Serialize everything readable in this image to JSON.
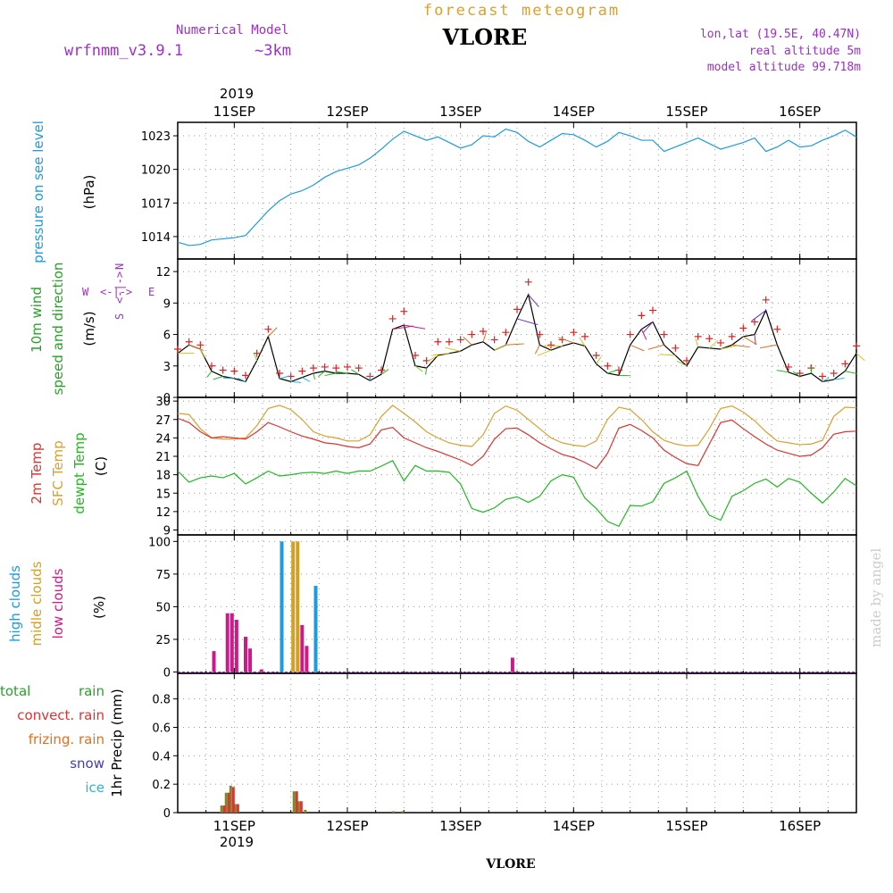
{
  "header": {
    "model_caption": "Numerical Model",
    "model_name": "wrfnmm_v3.9.1",
    "model_resolution": "~3km",
    "title": "forecast meteogram",
    "station": "VLORE",
    "lonlat": "lon,lat (19.5E, 40.47N)",
    "real_altitude": "real altitude 5m",
    "model_altitude": "model altitude  99.718m",
    "credit": "made by angel",
    "footer_station": "VLORE",
    "year": "2019"
  },
  "colors": {
    "pressure": "#1e9bdc",
    "wind_speed": "#000000",
    "wind_gust_marker": "#dd2222",
    "temp_2m": "#dd3333",
    "temp_sfc": "#daa030",
    "dewpoint": "#20b820",
    "high_clouds": "#1e9bdc",
    "mid_clouds": "#d4a020",
    "low_clouds": "#cc1a88",
    "total_rain": "#2aa02a",
    "convective_rain": "#dd3333",
    "freezing_rain": "#e07020",
    "snow": "#4040b0",
    "ice": "#20b8d8",
    "model_label": "#9b30c8",
    "title_color": "#daa030",
    "credit_color": "#cccccc"
  },
  "chart_data": [
    {
      "type": "line",
      "panel": "pressure",
      "ylabel": [
        "pressure on see level",
        "(hPa)"
      ],
      "yticks": [
        1014,
        1017,
        1020,
        1023
      ],
      "ylim": [
        1012,
        1024.2
      ],
      "x_days": [
        "11SEP",
        "12SEP",
        "13SEP",
        "14SEP",
        "15SEP",
        "16SEP"
      ],
      "xlim_days_from_11sep": [
        -0.5,
        5.5
      ],
      "grid": true,
      "series": [
        {
          "x": [
            -0.5,
            -0.4,
            -0.3,
            -0.2,
            -0.1,
            0,
            0.1,
            0.2,
            0.3,
            0.4,
            0.5,
            0.6,
            0.7,
            0.8,
            0.9,
            1,
            1.1,
            1.2,
            1.3,
            1.4,
            1.5,
            1.6,
            1.7,
            1.8,
            1.9,
            2,
            2.1,
            2.2,
            2.3,
            2.4,
            2.5,
            2.6,
            2.7,
            2.8,
            2.9,
            3,
            3.1,
            3.2,
            3.3,
            3.4,
            3.5,
            3.6,
            3.7,
            3.8,
            3.9,
            4,
            4.1,
            4.2,
            4.3,
            4.4,
            4.5,
            4.6,
            4.7,
            4.8,
            4.9,
            5,
            5.1,
            5.2,
            5.3,
            5.4,
            5.5
          ],
          "values": [
            1013.5,
            1013.2,
            1013.3,
            1013.7,
            1013.8,
            1013.9,
            1014.1,
            1015.2,
            1016.3,
            1017.2,
            1017.8,
            1018.1,
            1018.6,
            1019.3,
            1019.8,
            1020.1,
            1020.4,
            1021.0,
            1021.8,
            1022.7,
            1023.4,
            1023.0,
            1022.6,
            1022.9,
            1022.4,
            1021.9,
            1022.2,
            1023.0,
            1022.9,
            1023.6,
            1023.3,
            1022.5,
            1022.0,
            1022.6,
            1023.2,
            1023.1,
            1022.6,
            1022.0,
            1022.5,
            1023.3,
            1023.0,
            1022.6,
            1022.6,
            1021.6,
            1022.0,
            1022.4,
            1022.8,
            1022.3,
            1021.8,
            1022.1,
            1022.4,
            1022.8,
            1021.6,
            1022.0,
            1022.6,
            1022.0,
            1022.1,
            1022.6,
            1023.0,
            1023.5,
            1022.9
          ]
        }
      ]
    },
    {
      "type": "line",
      "panel": "wind",
      "ylabel": [
        "10m wind",
        "speed and direction",
        "(m/s)"
      ],
      "compass": {
        "w": "W",
        "e": "E",
        "s": "S",
        "n": "N"
      },
      "yticks": [
        0,
        3,
        6,
        9,
        12
      ],
      "ylim": [
        0,
        13.2
      ],
      "grid": true,
      "series": [
        {
          "name": "speed",
          "x": [
            -0.5,
            -0.4,
            -0.3,
            -0.2,
            -0.1,
            0,
            0.1,
            0.2,
            0.3,
            0.4,
            0.5,
            0.6,
            0.7,
            0.8,
            0.9,
            1,
            1.1,
            1.2,
            1.3,
            1.4,
            1.5,
            1.6,
            1.7,
            1.8,
            1.9,
            2,
            2.1,
            2.2,
            2.3,
            2.4,
            2.5,
            2.6,
            2.7,
            2.8,
            2.9,
            3,
            3.1,
            3.2,
            3.3,
            3.4,
            3.5,
            3.6,
            3.7,
            3.8,
            3.9,
            4,
            4.1,
            4.2,
            4.3,
            4.4,
            4.5,
            4.6,
            4.7,
            4.8,
            4.9,
            5,
            5.1,
            5.2,
            5.3,
            5.4,
            5.5
          ],
          "values": [
            4.2,
            5.0,
            4.6,
            2.5,
            2.0,
            1.8,
            1.5,
            3.5,
            5.8,
            1.8,
            1.5,
            1.9,
            2.3,
            2.5,
            2.3,
            2.3,
            2.2,
            1.6,
            2.2,
            6.5,
            6.9,
            3.0,
            2.8,
            4.0,
            4.2,
            4.4,
            5.0,
            5.3,
            4.5,
            5.0,
            7.5,
            9.8,
            5.0,
            4.5,
            4.9,
            5.2,
            4.9,
            3.2,
            2.3,
            2.1,
            5.0,
            6.5,
            7.2,
            5.0,
            4.0,
            3.0,
            4.8,
            4.7,
            4.6,
            5.0,
            5.8,
            6.0,
            8.3,
            5.0,
            2.4,
            2.0,
            2.3,
            1.5,
            1.7,
            2.5,
            4.2
          ]
        },
        {
          "name": "gust",
          "x": [
            -0.5,
            -0.4,
            -0.3,
            -0.2,
            -0.1,
            0,
            0.1,
            0.2,
            0.3,
            0.4,
            0.5,
            0.6,
            0.7,
            0.8,
            0.9,
            1,
            1.1,
            1.2,
            1.3,
            1.4,
            1.5,
            1.6,
            1.7,
            1.8,
            1.9,
            2,
            2.1,
            2.2,
            2.3,
            2.4,
            2.5,
            2.6,
            2.7,
            2.8,
            2.9,
            3,
            3.1,
            3.2,
            3.3,
            3.4,
            3.5,
            3.6,
            3.7,
            3.8,
            3.9,
            4,
            4.1,
            4.2,
            4.3,
            4.4,
            4.5,
            4.6,
            4.7,
            4.8,
            4.9,
            5,
            5.1,
            5.2,
            5.3,
            5.4,
            5.5
          ],
          "values": [
            4.6,
            5.3,
            5.0,
            3.0,
            2.6,
            2.5,
            2.1,
            4.2,
            6.5,
            2.3,
            2.0,
            2.5,
            2.8,
            2.9,
            2.8,
            2.9,
            2.8,
            2.0,
            2.6,
            7.5,
            8.2,
            4.0,
            3.5,
            5.3,
            5.3,
            5.5,
            6.0,
            6.3,
            5.5,
            6.2,
            8.4,
            11.0,
            6.0,
            5.0,
            5.5,
            6.2,
            5.8,
            4.0,
            3.0,
            2.6,
            6.0,
            7.8,
            8.3,
            6.0,
            4.7,
            3.5,
            5.8,
            5.6,
            5.2,
            5.8,
            6.6,
            7.2,
            9.3,
            6.5,
            2.9,
            2.3,
            2.8,
            2.0,
            2.3,
            3.2,
            4.9
          ]
        }
      ]
    },
    {
      "type": "line",
      "panel": "temperature",
      "ylabel": [
        "2m Temp",
        "SFC Temp",
        "dewpt Temp",
        "(C)"
      ],
      "yticks": [
        9,
        12,
        15,
        18,
        21,
        24,
        27,
        30
      ],
      "ylim": [
        8.2,
        30.6
      ],
      "grid": true,
      "series": [
        {
          "name": "2m",
          "x": [
            -0.5,
            -0.4,
            -0.3,
            -0.2,
            -0.1,
            0,
            0.1,
            0.2,
            0.3,
            0.4,
            0.5,
            0.6,
            0.7,
            0.8,
            0.9,
            1,
            1.1,
            1.2,
            1.3,
            1.4,
            1.5,
            1.6,
            1.7,
            1.8,
            1.9,
            2,
            2.1,
            2.2,
            2.3,
            2.4,
            2.5,
            2.6,
            2.7,
            2.8,
            2.9,
            3,
            3.1,
            3.2,
            3.3,
            3.4,
            3.5,
            3.6,
            3.7,
            3.8,
            3.9,
            4,
            4.1,
            4.2,
            4.3,
            4.4,
            4.5,
            4.6,
            4.7,
            4.8,
            4.9,
            5,
            5.1,
            5.2,
            5.3,
            5.4,
            5.5
          ],
          "values": [
            27.2,
            26.5,
            25.0,
            24.0,
            24.2,
            24.0,
            23.8,
            25.0,
            26.5,
            25.8,
            25.0,
            24.3,
            23.8,
            23.2,
            23.0,
            22.6,
            22.4,
            23.0,
            25.3,
            25.7,
            24.0,
            23.2,
            22.4,
            21.8,
            21.1,
            20.4,
            19.5,
            21.0,
            23.8,
            25.5,
            25.6,
            24.5,
            23.2,
            22.2,
            21.3,
            20.8,
            20.0,
            19.0,
            21.5,
            25.6,
            26.2,
            25.2,
            24.0,
            22.0,
            20.8,
            19.8,
            19.5,
            23.0,
            26.5,
            26.9,
            25.5,
            24.2,
            23.0,
            22.0,
            21.5,
            21.0,
            21.2,
            22.4,
            24.6,
            25.0,
            25.1
          ]
        },
        {
          "name": "sfc",
          "x": [
            -0.5,
            -0.4,
            -0.3,
            -0.2,
            -0.1,
            0,
            0.1,
            0.2,
            0.3,
            0.4,
            0.5,
            0.6,
            0.7,
            0.8,
            0.9,
            1,
            1.1,
            1.2,
            1.3,
            1.4,
            1.5,
            1.6,
            1.7,
            1.8,
            1.9,
            2,
            2.1,
            2.2,
            2.3,
            2.4,
            2.5,
            2.6,
            2.7,
            2.8,
            2.9,
            3,
            3.1,
            3.2,
            3.3,
            3.4,
            3.5,
            3.6,
            3.7,
            3.8,
            3.9,
            4,
            4.1,
            4.2,
            4.3,
            4.4,
            4.5,
            4.6,
            4.7,
            4.8,
            4.9,
            5,
            5.1,
            5.2,
            5.3,
            5.4,
            5.5
          ],
          "values": [
            28.0,
            27.8,
            25.5,
            24.0,
            23.8,
            23.8,
            24.0,
            26.0,
            28.8,
            29.3,
            28.6,
            27.0,
            25.0,
            24.3,
            24.0,
            23.5,
            23.5,
            24.5,
            27.5,
            29.3,
            28.0,
            26.6,
            25.0,
            24.0,
            23.2,
            22.8,
            22.6,
            24.5,
            28.0,
            29.2,
            28.5,
            27.0,
            25.5,
            24.0,
            23.2,
            22.8,
            22.6,
            23.5,
            27.0,
            29.0,
            28.6,
            27.0,
            25.0,
            23.6,
            23.0,
            22.7,
            22.8,
            25.5,
            28.8,
            29.2,
            28.2,
            26.8,
            25.0,
            23.5,
            23.2,
            22.9,
            23.0,
            23.6,
            27.5,
            29.0,
            28.9
          ]
        },
        {
          "name": "dewpoint",
          "x": [
            -0.5,
            -0.4,
            -0.3,
            -0.2,
            -0.1,
            0,
            0.1,
            0.2,
            0.3,
            0.4,
            0.5,
            0.6,
            0.7,
            0.8,
            0.9,
            1,
            1.1,
            1.2,
            1.3,
            1.4,
            1.5,
            1.6,
            1.7,
            1.8,
            1.9,
            2,
            2.1,
            2.2,
            2.3,
            2.4,
            2.5,
            2.6,
            2.7,
            2.8,
            2.9,
            3,
            3.1,
            3.2,
            3.3,
            3.4,
            3.5,
            3.6,
            3.7,
            3.8,
            3.9,
            4,
            4.1,
            4.2,
            4.3,
            4.4,
            4.5,
            4.6,
            4.7,
            4.8,
            4.9,
            5,
            5.1,
            5.2,
            5.3,
            5.4,
            5.5
          ],
          "values": [
            18.6,
            16.8,
            17.5,
            17.8,
            17.5,
            18.2,
            16.5,
            17.5,
            18.6,
            17.8,
            18.0,
            18.3,
            18.4,
            18.2,
            18.6,
            18.2,
            18.6,
            18.6,
            19.4,
            20.3,
            17.0,
            19.5,
            18.6,
            18.6,
            18.4,
            16.5,
            12.5,
            11.9,
            12.6,
            14.0,
            14.4,
            13.5,
            14.5,
            17.0,
            18.0,
            17.6,
            14.2,
            12.5,
            10.4,
            9.6,
            13.0,
            12.9,
            13.6,
            16.6,
            17.5,
            18.6,
            14.5,
            11.4,
            10.6,
            14.5,
            15.4,
            16.6,
            17.3,
            16.0,
            17.4,
            16.8,
            15.0,
            13.4,
            15.2,
            17.4,
            16.2
          ]
        }
      ]
    },
    {
      "type": "bar",
      "panel": "clouds",
      "ylabel": [
        "high  clouds",
        "midle clouds",
        "low   clouds",
        "(%)"
      ],
      "yticks": [
        0,
        25,
        50,
        75,
        100
      ],
      "ylim": [
        -1,
        105
      ],
      "grid": true,
      "series": [
        {
          "name": "high",
          "x": [
            0.42,
            0.72
          ],
          "values": [
            100,
            66
          ]
        },
        {
          "name": "midle",
          "x": [
            0.52,
            0.56
          ],
          "values": [
            100,
            100
          ]
        },
        {
          "name": "low",
          "x": [
            -0.18,
            -0.06,
            -0.02,
            0.02,
            0.1,
            0.14,
            0.24,
            0.6,
            0.64,
            2.46
          ],
          "values": [
            16,
            45,
            45,
            40,
            27,
            18,
            2,
            36,
            20,
            11
          ]
        }
      ]
    },
    {
      "type": "bar",
      "panel": "precip",
      "ylabel": [
        "1hr Precip (mm)"
      ],
      "legend": [
        "total",
        "rain",
        "convect. rain",
        "frizing. rain",
        "snow",
        "ice"
      ],
      "yticks": [
        0,
        0.2,
        0.4,
        0.6,
        0.8
      ],
      "ylim": [
        0,
        0.98
      ],
      "grid": true,
      "series": [
        {
          "name": "total",
          "x": [
            -0.1,
            -0.06,
            -0.02,
            0.02,
            0.54,
            0.58,
            0.64,
            1.42,
            1.5
          ],
          "values": [
            0.05,
            0.14,
            0.19,
            0.06,
            0.15,
            0.08,
            0.02,
            0.01,
            0.01
          ]
        },
        {
          "name": "convect.",
          "x": [
            -0.1,
            -0.06,
            -0.02,
            0.02,
            0.54,
            0.58
          ],
          "values": [
            0.05,
            0.14,
            0.18,
            0.06,
            0.15,
            0.08
          ]
        }
      ]
    }
  ]
}
